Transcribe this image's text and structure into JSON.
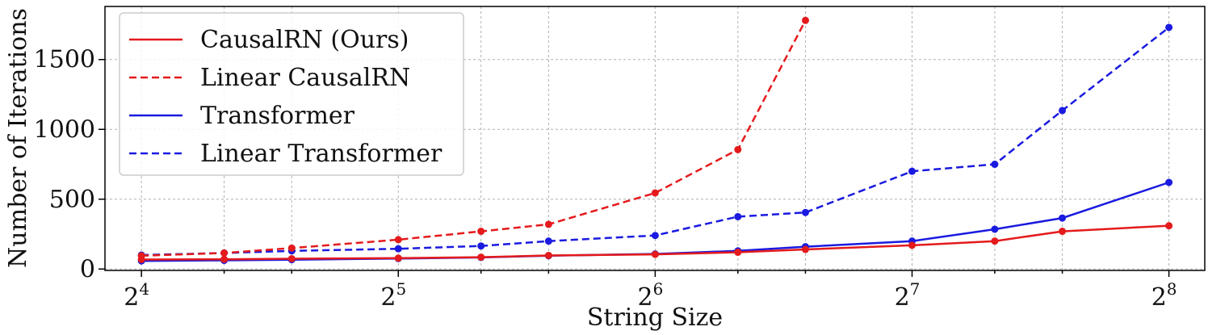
{
  "chart_data": {
    "type": "line",
    "xlabel": "String Size",
    "ylabel": "Number of Iterations",
    "x_scale": "log2",
    "x_ticks": [
      {
        "base": "2",
        "exp": "4",
        "value": 16
      },
      {
        "base": "2",
        "exp": "5",
        "value": 32
      },
      {
        "base": "2",
        "exp": "6",
        "value": 64
      },
      {
        "base": "2",
        "exp": "7",
        "value": 128
      },
      {
        "base": "2",
        "exp": "8",
        "value": 256
      }
    ],
    "y_ticks": [
      "0",
      "500",
      "1000",
      "1500"
    ],
    "xlim": [
      14.5,
      282
    ],
    "ylim": [
      -10,
      1880
    ],
    "grid": true,
    "legend_position": "top-left",
    "x": [
      16,
      20,
      24,
      32,
      40,
      48,
      64,
      80,
      96,
      128,
      160,
      192,
      256
    ],
    "series": [
      {
        "name": "CausalRN (Ours)",
        "color": "#e41a1c",
        "dash": false,
        "values": [
          68,
          70,
          74,
          78,
          85,
          97,
          105,
          120,
          140,
          170,
          200,
          270,
          310
        ]
      },
      {
        "name": "Linear CausalRN",
        "color": "#e41a1c",
        "dash": true,
        "values": [
          95,
          115,
          150,
          210,
          270,
          320,
          545,
          855,
          1780,
          null,
          null,
          null,
          null
        ]
      },
      {
        "name": "Transformer",
        "color": "#1a1ae0",
        "dash": false,
        "values": [
          58,
          62,
          67,
          75,
          83,
          95,
          108,
          130,
          160,
          200,
          285,
          365,
          620
        ]
      },
      {
        "name": "Linear Transformer",
        "color": "#1a1ae0",
        "dash": true,
        "values": [
          100,
          115,
          130,
          145,
          165,
          200,
          240,
          375,
          405,
          700,
          750,
          1135,
          1730
        ]
      }
    ]
  }
}
